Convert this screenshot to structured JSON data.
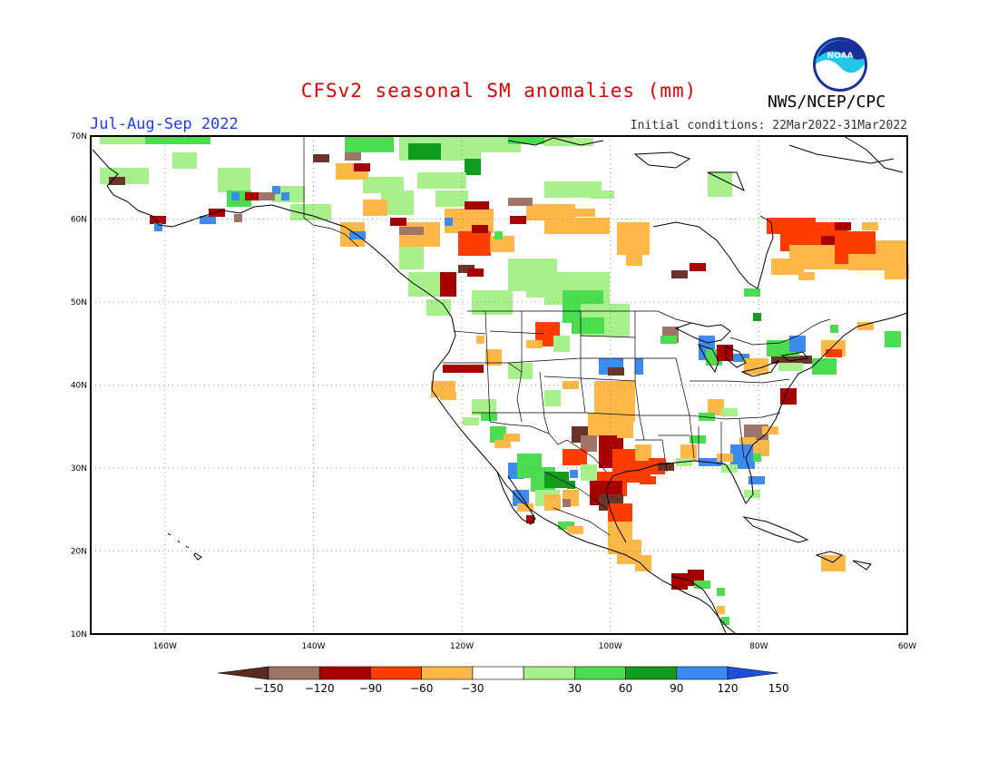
{
  "header": {
    "title": "CFSv2 seasonal SM anomalies (mm)",
    "period": "Jul-Aug-Sep 2022",
    "initial_conditions": "Initial conditions: 22Mar2022-31Mar2022",
    "agency": "NWS/NCEP/CPC",
    "logo_text": "NOAA"
  },
  "map": {
    "lon_range": [
      -170,
      -60
    ],
    "lat_range": [
      10,
      70
    ],
    "lon_ticks": [
      {
        "value": -160,
        "label": "160W"
      },
      {
        "value": -140,
        "label": "140W"
      },
      {
        "value": -120,
        "label": "120W"
      },
      {
        "value": -100,
        "label": "100W"
      },
      {
        "value": -80,
        "label": "80W"
      },
      {
        "value": -60,
        "label": "60W"
      }
    ],
    "lat_ticks": [
      {
        "value": 70,
        "label": "70N"
      },
      {
        "value": 60,
        "label": "60N"
      },
      {
        "value": 50,
        "label": "50N"
      },
      {
        "value": 40,
        "label": "40N"
      },
      {
        "value": 30,
        "label": "30N"
      },
      {
        "value": 20,
        "label": "20N"
      },
      {
        "value": 10,
        "label": "10N"
      }
    ],
    "gridlines": "dotted"
  },
  "colorbar": {
    "levels": [
      "-150",
      "-120",
      "-90",
      "-60",
      "-30",
      "30",
      "60",
      "90",
      "120",
      "150"
    ],
    "colors": [
      "#5c2a20",
      "#9f7567",
      "#a80000",
      "#ff3c00",
      "#ffb848",
      "#ffffff",
      "#a8f08c",
      "#4cdc50",
      "#129c1e",
      "#3c8cf0",
      "#1e50dc"
    ]
  },
  "colors": {
    "brown_dark": "#6b3428",
    "brown_light": "#9f7567",
    "dark_red": "#a80000",
    "red": "#ff3c00",
    "orange": "#ffb848",
    "light_green": "#a8f08c",
    "green": "#4cdc50",
    "dark_green": "#129c1e",
    "blue": "#3c8cf0"
  }
}
